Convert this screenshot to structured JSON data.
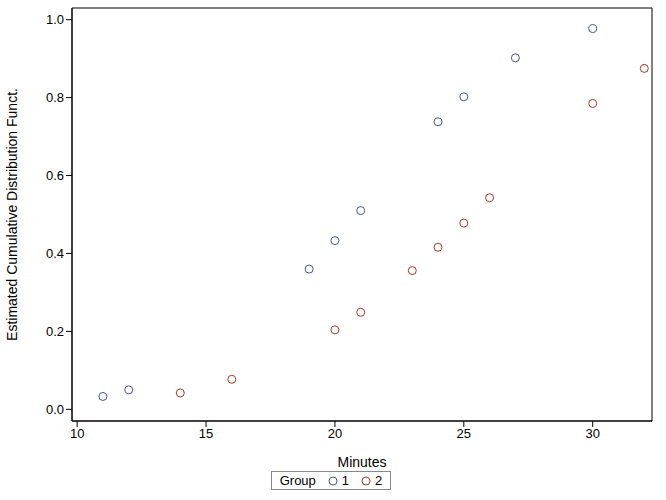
{
  "chart_data": {
    "type": "scatter",
    "x_label": "Minutes",
    "y_label": "Estimated Cumulative Distribution Funct.",
    "legend_title": "Group",
    "legend": "bottom",
    "marker": "circle",
    "xlim": [
      9.8,
      32.3
    ],
    "xticks": [
      10,
      15,
      20,
      25,
      30
    ],
    "ylim": [
      -0.03,
      1.03
    ],
    "yticks": [
      {
        "value": 0,
        "label": "0.0"
      },
      0.2,
      0.4,
      0.6,
      0.8,
      {
        "value": 1,
        "label": "1.0"
      }
    ],
    "series": [
      {
        "name": "1",
        "color": "#445694",
        "x": [
          11,
          12,
          19,
          20,
          21,
          24,
          25,
          27,
          30
        ],
        "values": [
          0.033,
          0.05,
          0.36,
          0.433,
          0.51,
          0.738,
          0.802,
          0.902,
          0.977
        ]
      },
      {
        "name": "2",
        "color": "#a23a2e",
        "x": [
          14,
          16,
          20,
          21,
          23,
          24,
          25,
          26,
          30,
          32
        ],
        "values": [
          0.042,
          0.077,
          0.204,
          0.249,
          0.356,
          0.416,
          0.478,
          0.543,
          0.785,
          0.875
        ]
      }
    ]
  }
}
